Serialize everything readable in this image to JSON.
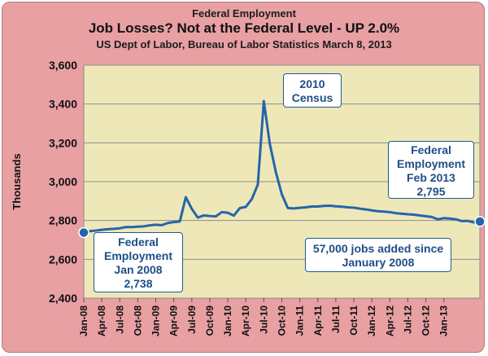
{
  "header": {
    "supertitle": "Federal Employment",
    "title": "Job Losses? Not at the Federal Level - UP 2.0%",
    "subtitle": "US Dept of Labor, Bureau of Labor Statistics March 8, 2013"
  },
  "colors": {
    "background": "#e8a0a3",
    "plot_area": "#eee7b8",
    "series": "#2565a8",
    "text": "#1f4e87"
  },
  "callouts": {
    "census": [
      "2010",
      "Census"
    ],
    "start": [
      "Federal",
      "Employment",
      "Jan 2008",
      "2,738"
    ],
    "end": [
      "Federal",
      "Employment",
      "Feb 2013",
      "2,795"
    ],
    "added": [
      "57,000 jobs added since",
      "January 2008"
    ]
  },
  "chart_data": {
    "type": "line",
    "title": "Job Losses? Not at the Federal Level - UP 2.0%",
    "ylabel": "Thousands",
    "ylim": [
      2400,
      3600
    ],
    "yticks": [
      2400,
      2600,
      2800,
      3000,
      3200,
      3400,
      3600
    ],
    "ytick_labels": [
      "2,400",
      "2,600",
      "2,800",
      "3,000",
      "3,200",
      "3,400",
      "3,600"
    ],
    "xtick_labels": [
      "Jan-08",
      "Apr-08",
      "Jul-08",
      "Oct-08",
      "Jan-09",
      "Apr-09",
      "Jul-09",
      "Oct-09",
      "Jan-10",
      "Apr-10",
      "Jul-10",
      "Oct-10",
      "Jan-11",
      "Apr-11",
      "Jul-11",
      "Oct-11",
      "Jan-12",
      "Apr-12",
      "Jul-12",
      "Oct-12",
      "Jan-13"
    ],
    "grid": true,
    "series": [
      {
        "values": [
          2738,
          2745,
          2748,
          2752,
          2755,
          2757,
          2760,
          2766,
          2766,
          2768,
          2770,
          2775,
          2778,
          2776,
          2787,
          2792,
          2795,
          2920,
          2860,
          2815,
          2826,
          2823,
          2821,
          2843,
          2840,
          2825,
          2864,
          2870,
          2910,
          2985,
          3415,
          3195,
          3050,
          2935,
          2864,
          2862,
          2865,
          2868,
          2872,
          2872,
          2875,
          2876,
          2873,
          2871,
          2868,
          2866,
          2861,
          2857,
          2852,
          2848,
          2846,
          2843,
          2838,
          2835,
          2832,
          2830,
          2826,
          2822,
          2818,
          2806,
          2812,
          2810,
          2806,
          2797,
          2798,
          2790,
          2795
        ]
      }
    ],
    "markers": [
      {
        "index": 0,
        "value": 2738
      },
      {
        "index": 66,
        "value": 2795
      }
    ]
  }
}
